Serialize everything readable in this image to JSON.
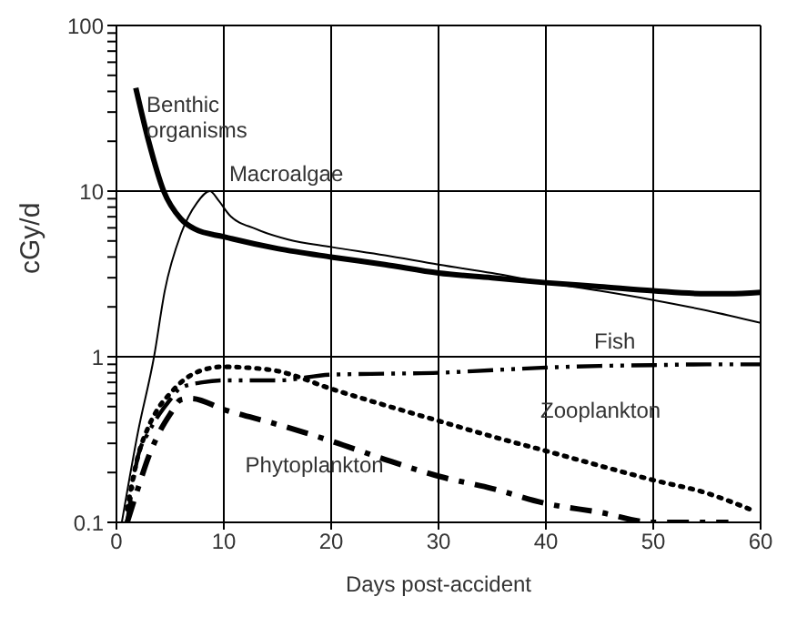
{
  "chart_data": {
    "type": "line",
    "xlabel": "Days post-accident",
    "ylabel": "cGy/d",
    "log": "y",
    "grid": true,
    "legend": false,
    "marker": "none",
    "xlim": [
      0,
      60
    ],
    "xticks": [
      0,
      10,
      20,
      30,
      40,
      50,
      60
    ],
    "ylim": [
      0.1,
      100
    ],
    "yticks": [
      0.1,
      {
        "value": 0.2,
        "label": null
      },
      {
        "value": 0.3,
        "label": null
      },
      {
        "value": 0.4,
        "label": null
      },
      {
        "value": 0.5,
        "label": null
      },
      {
        "value": 0.6,
        "label": null
      },
      {
        "value": 0.7,
        "label": null
      },
      {
        "value": 0.8,
        "label": null
      },
      {
        "value": 0.9,
        "label": null
      },
      1,
      {
        "value": 2,
        "label": null
      },
      {
        "value": 3,
        "label": null
      },
      {
        "value": 4,
        "label": null
      },
      {
        "value": 5,
        "label": null
      },
      {
        "value": 6,
        "label": null
      },
      {
        "value": 7,
        "label": null
      },
      {
        "value": 8,
        "label": null
      },
      {
        "value": 9,
        "label": null
      },
      10,
      {
        "value": 20,
        "label": null
      },
      {
        "value": 30,
        "label": null
      },
      {
        "value": 40,
        "label": null
      },
      {
        "value": 50,
        "label": null
      },
      {
        "value": 60,
        "label": null
      },
      {
        "value": 70,
        "label": null
      },
      {
        "value": 80,
        "label": null
      },
      {
        "value": 90,
        "label": null
      },
      100
    ],
    "series": [
      {
        "name": "Benthic organisms",
        "color": "#000000",
        "line_style": "solid",
        "x": [
          1.8,
          3,
          4.4,
          6,
          7.3,
          10,
          15,
          20,
          25,
          30,
          35,
          40,
          45,
          50,
          55,
          57,
          60
        ],
        "values": [
          42,
          20,
          10,
          6.8,
          5.9,
          5.3,
          4.5,
          4.0,
          3.6,
          3.2,
          3.0,
          2.8,
          2.65,
          2.5,
          2.4,
          2.4,
          2.45
        ]
      },
      {
        "name": "Macroalgae",
        "color": "#000000",
        "line_style": "solid",
        "x": [
          0.5,
          2,
          3.5,
          4.5,
          6,
          7.5,
          8.7,
          9.5,
          10.5,
          13,
          16,
          20,
          25,
          30,
          35,
          40,
          45,
          50,
          55,
          60
        ],
        "values": [
          0.1,
          0.35,
          1,
          2.5,
          5.5,
          8.5,
          10,
          8.8,
          7.2,
          5.9,
          5.1,
          4.6,
          4.1,
          3.6,
          3.2,
          2.8,
          2.5,
          2.2,
          1.9,
          1.6
        ]
      },
      {
        "name": "Fish",
        "color": "#000000",
        "line_style": "dashed",
        "x": [
          1,
          2,
          3,
          4,
          5,
          6,
          8,
          10,
          15,
          20,
          25,
          30,
          35,
          40,
          45,
          50,
          55,
          60
        ],
        "values": [
          0.1,
          0.25,
          0.35,
          0.45,
          0.55,
          0.65,
          0.7,
          0.72,
          0.72,
          0.78,
          0.79,
          0.8,
          0.83,
          0.86,
          0.88,
          0.89,
          0.9,
          0.9
        ]
      },
      {
        "name": "Zooplankton",
        "color": "#000000",
        "line_style": "dotted",
        "x": [
          1,
          2,
          3,
          4,
          5,
          6,
          8,
          10,
          12,
          15,
          20,
          25,
          30,
          35,
          40,
          45,
          50,
          55,
          59
        ],
        "values": [
          0.12,
          0.25,
          0.38,
          0.5,
          0.6,
          0.7,
          0.83,
          0.87,
          0.86,
          0.82,
          0.64,
          0.51,
          0.41,
          0.33,
          0.27,
          0.22,
          0.18,
          0.15,
          0.12
        ]
      },
      {
        "name": "Phytoplankton",
        "color": "#000000",
        "line_style": "dashed",
        "x": [
          1,
          2,
          3,
          4,
          5,
          6,
          7,
          10,
          15,
          20,
          25,
          30,
          35,
          40,
          45,
          50,
          54,
          57
        ],
        "values": [
          0.1,
          0.16,
          0.25,
          0.35,
          0.45,
          0.55,
          0.56,
          0.48,
          0.39,
          0.31,
          0.24,
          0.19,
          0.16,
          0.13,
          0.115,
          0.1,
          0.1,
          0.1
        ]
      }
    ]
  }
}
